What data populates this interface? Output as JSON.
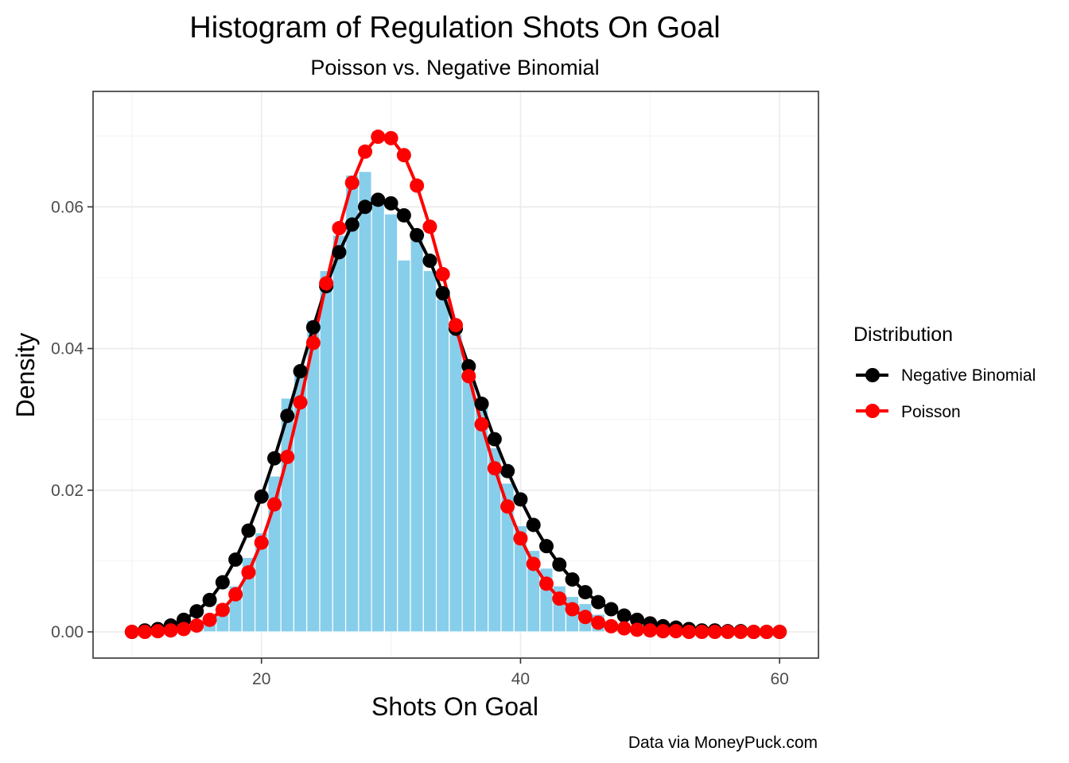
{
  "chart_data": {
    "type": "bar",
    "title": "Histogram of Regulation Shots On Goal",
    "subtitle": "Poisson vs. Negative Binomial",
    "xlabel": "Shots On Goal",
    "ylabel": "Density",
    "caption": "Data via MoneyPuck.com",
    "xlim": [
      7,
      63
    ],
    "ylim": [
      -0.0037,
      0.0763
    ],
    "x_ticks": [
      20,
      40,
      60
    ],
    "y_ticks": [
      0.0,
      0.02,
      0.04,
      0.06
    ],
    "x_tick_labels": [
      "20",
      "40",
      "60"
    ],
    "y_tick_labels": [
      "0.00",
      "0.02",
      "0.04",
      "0.06"
    ],
    "grid": true,
    "legend": {
      "title": "Distribution",
      "position": "right",
      "entries": [
        "Negative Binomial",
        "Poisson"
      ]
    },
    "colors": {
      "histogram": "#87ceeb",
      "negative_binomial": "#000000",
      "poisson": "#ff0000"
    },
    "histogram": {
      "x": [
        13,
        14,
        15,
        16,
        17,
        18,
        19,
        20,
        21,
        22,
        23,
        24,
        25,
        26,
        27,
        28,
        29,
        30,
        31,
        32,
        33,
        34,
        35,
        36,
        37,
        38,
        39,
        40,
        41,
        42,
        43,
        44,
        45,
        46,
        47,
        48,
        49,
        50
      ],
      "values": [
        0.0003,
        0.0006,
        0.001,
        0.0016,
        0.004,
        0.0065,
        0.0105,
        0.014,
        0.022,
        0.033,
        0.037,
        0.044,
        0.051,
        0.056,
        0.0645,
        0.065,
        0.061,
        0.059,
        0.0525,
        0.056,
        0.051,
        0.047,
        0.042,
        0.038,
        0.032,
        0.026,
        0.021,
        0.015,
        0.0115,
        0.009,
        0.0065,
        0.005,
        0.004,
        0.0025,
        0.0015,
        0.0008,
        0.0005,
        0.0002
      ]
    },
    "series": [
      {
        "name": "Negative Binomial",
        "x": [
          10,
          11,
          12,
          13,
          14,
          15,
          16,
          17,
          18,
          19,
          20,
          21,
          22,
          23,
          24,
          25,
          26,
          27,
          28,
          29,
          30,
          31,
          32,
          33,
          34,
          35,
          36,
          37,
          38,
          39,
          40,
          41,
          42,
          43,
          44,
          45,
          46,
          47,
          48,
          49,
          50,
          51,
          52,
          53,
          54,
          55,
          56,
          57,
          58,
          59,
          60
        ],
        "values": [
          0.0,
          0.0002,
          0.0004,
          0.0009,
          0.0017,
          0.0029,
          0.0045,
          0.007,
          0.0102,
          0.0143,
          0.0191,
          0.0245,
          0.0305,
          0.0368,
          0.043,
          0.0488,
          0.0536,
          0.0575,
          0.06,
          0.061,
          0.0605,
          0.0588,
          0.056,
          0.0524,
          0.0478,
          0.0428,
          0.0375,
          0.0322,
          0.0272,
          0.0227,
          0.0187,
          0.0151,
          0.0121,
          0.0095,
          0.0074,
          0.0056,
          0.0042,
          0.0032,
          0.0023,
          0.0017,
          0.0012,
          0.0008,
          0.0006,
          0.0004,
          0.0002,
          0.0002,
          0.0001,
          0.0001,
          0.0,
          0.0,
          0.0
        ]
      },
      {
        "name": "Poisson",
        "x": [
          10,
          11,
          12,
          13,
          14,
          15,
          16,
          17,
          18,
          19,
          20,
          21,
          22,
          23,
          24,
          25,
          26,
          27,
          28,
          29,
          30,
          31,
          32,
          33,
          34,
          35,
          36,
          37,
          38,
          39,
          40,
          41,
          42,
          43,
          44,
          45,
          46,
          47,
          48,
          49,
          50,
          51,
          52,
          53,
          54,
          55,
          56,
          57,
          58,
          59,
          60
        ],
        "values": [
          0.0,
          0.0,
          0.0001,
          0.0002,
          0.0004,
          0.0009,
          0.0017,
          0.0031,
          0.0053,
          0.0084,
          0.0126,
          0.018,
          0.0247,
          0.0324,
          0.0408,
          0.0492,
          0.057,
          0.0634,
          0.0678,
          0.0699,
          0.0697,
          0.0673,
          0.063,
          0.0572,
          0.0505,
          0.0433,
          0.0361,
          0.0293,
          0.0231,
          0.0177,
          0.0132,
          0.0096,
          0.0068,
          0.0047,
          0.0032,
          0.0021,
          0.0013,
          0.0008,
          0.0005,
          0.0003,
          0.0002,
          0.0001,
          0.0001,
          0.0,
          0.0,
          0.0,
          0.0,
          0.0,
          0.0,
          0.0,
          0.0
        ]
      }
    ]
  }
}
